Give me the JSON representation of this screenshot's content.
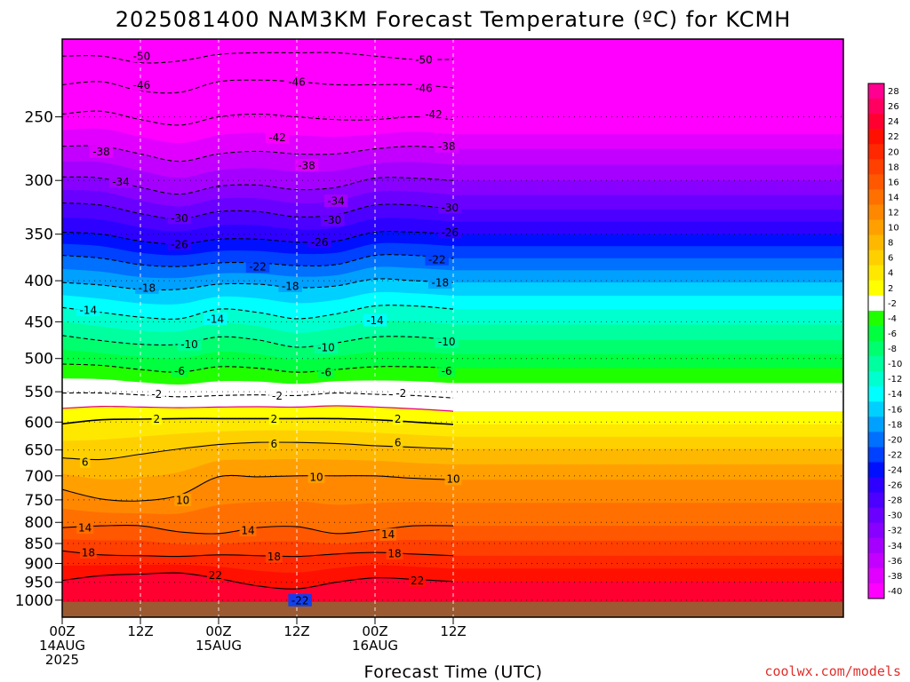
{
  "chart_data": {
    "type": "heatmap",
    "title": "2025081400 NAM3KM Forecast Temperature (ºC) for KCMH",
    "xlabel": "Forecast Time (UTC)",
    "credit": "coolwx.com/models",
    "y_scale": "log",
    "y_units": "hPa",
    "ylim": [
      1050,
      200
    ],
    "yticks": [
      250,
      300,
      350,
      400,
      450,
      500,
      550,
      600,
      650,
      700,
      750,
      800,
      850,
      900,
      950,
      1000
    ],
    "x_hours_range": [
      0,
      48
    ],
    "xticks": [
      {
        "hour": 0,
        "lines": [
          "00Z",
          "14AUG",
          "2025"
        ]
      },
      {
        "hour": 12,
        "lines": [
          "12Z"
        ]
      },
      {
        "hour": 24,
        "lines": [
          "00Z",
          "15AUG"
        ]
      },
      {
        "hour": 36,
        "lines": [
          "12Z"
        ]
      },
      {
        "hour": 48,
        "lines": [
          "00Z",
          "16AUG"
        ]
      },
      {
        "hour": 60,
        "lines": [
          "12Z"
        ]
      }
    ],
    "time_axis_hours": [
      0,
      6,
      12,
      18,
      24,
      30,
      36,
      42,
      48,
      54,
      60
    ],
    "isotherm_profile": [
      {
        "temp": -50,
        "pressure": [
          210,
          210,
          214,
          213,
          209,
          208,
          208,
          208,
          210,
          212,
          212
        ]
      },
      {
        "temp": -46,
        "pressure": [
          228,
          226,
          232,
          233,
          226,
          225,
          226,
          228,
          228,
          228,
          230
        ]
      },
      {
        "temp": -42,
        "pressure": [
          248,
          246,
          252,
          256,
          250,
          248,
          250,
          252,
          252,
          250,
          252
        ]
      },
      {
        "temp": -38,
        "pressure": [
          272,
          272,
          278,
          284,
          278,
          276,
          278,
          278,
          274,
          272,
          274
        ]
      },
      {
        "temp": -34,
        "pressure": [
          297,
          298,
          306,
          312,
          305,
          304,
          308,
          306,
          298,
          298,
          300
        ]
      },
      {
        "temp": -30,
        "pressure": [
          320,
          322,
          330,
          335,
          328,
          328,
          333,
          331,
          322,
          322,
          326
        ]
      },
      {
        "temp": -26,
        "pressure": [
          348,
          350,
          357,
          360,
          355,
          355,
          358,
          357,
          348,
          348,
          350
        ]
      },
      {
        "temp": -22,
        "pressure": [
          372,
          375,
          382,
          384,
          380,
          380,
          383,
          382,
          372,
          372,
          375
        ]
      },
      {
        "temp": -18,
        "pressure": [
          402,
          405,
          410,
          410,
          404,
          404,
          408,
          406,
          398,
          400,
          402
        ]
      },
      {
        "temp": -14,
        "pressure": [
          432,
          438,
          444,
          446,
          434,
          438,
          446,
          440,
          430,
          430,
          434
        ]
      },
      {
        "temp": -10,
        "pressure": [
          468,
          475,
          480,
          480,
          470,
          474,
          484,
          478,
          470,
          470,
          474
        ]
      },
      {
        "temp": -6,
        "pressure": [
          508,
          510,
          516,
          520,
          512,
          514,
          520,
          516,
          512,
          512,
          514
        ]
      },
      {
        "temp": -2,
        "pressure": [
          552,
          552,
          555,
          558,
          556,
          555,
          556,
          552,
          554,
          556,
          560
        ]
      },
      {
        "temp": 2,
        "pressure": [
          603,
          596,
          595,
          594,
          594,
          594,
          594,
          594,
          596,
          600,
          604
        ]
      },
      {
        "temp": 6,
        "pressure": [
          665,
          668,
          658,
          648,
          640,
          636,
          636,
          638,
          642,
          645,
          648
        ]
      },
      {
        "temp": 10,
        "pressure": [
          728,
          748,
          752,
          740,
          702,
          702,
          700,
          700,
          700,
          705,
          708
        ]
      },
      {
        "temp": 14,
        "pressure": [
          812,
          808,
          808,
          822,
          826,
          812,
          810,
          826,
          818,
          808,
          808
        ]
      },
      {
        "temp": 18,
        "pressure": [
          868,
          878,
          880,
          882,
          878,
          880,
          882,
          876,
          872,
          876,
          880
        ]
      },
      {
        "temp": 22,
        "pressure": [
          945,
          932,
          928,
          925,
          940,
          960,
          968,
          950,
          938,
          942,
          948
        ]
      }
    ],
    "contour_labels": [
      {
        "text": "-50",
        "hour": 12.2,
        "pressure": 210
      },
      {
        "text": "-50",
        "hour": 55.5,
        "pressure": 212
      },
      {
        "text": "-46",
        "hour": 12.2,
        "pressure": 228
      },
      {
        "text": "-46",
        "hour": 36.0,
        "pressure": 226
      },
      {
        "text": "-46",
        "hour": 55.5,
        "pressure": 230
      },
      {
        "text": "-42",
        "hour": 33.0,
        "pressure": 265
      },
      {
        "text": "-42",
        "hour": 57.0,
        "pressure": 248
      },
      {
        "text": "-38",
        "hour": 6.0,
        "pressure": 276
      },
      {
        "text": "-38",
        "hour": 37.5,
        "pressure": 287
      },
      {
        "text": "-38",
        "hour": 59.0,
        "pressure": 272
      },
      {
        "text": "-34",
        "hour": 9.0,
        "pressure": 301
      },
      {
        "text": "-34",
        "hour": 42.0,
        "pressure": 318
      },
      {
        "text": "-30",
        "hour": 18.0,
        "pressure": 334
      },
      {
        "text": "-30",
        "hour": 41.5,
        "pressure": 336
      },
      {
        "text": "-30",
        "hour": 59.5,
        "pressure": 324
      },
      {
        "text": "-26",
        "hour": 18.0,
        "pressure": 360
      },
      {
        "text": "-26",
        "hour": 39.5,
        "pressure": 358
      },
      {
        "text": "-26",
        "hour": 59.5,
        "pressure": 348
      },
      {
        "text": "-22",
        "hour": 30.0,
        "pressure": 384
      },
      {
        "text": "-22",
        "hour": 57.5,
        "pressure": 376
      },
      {
        "text": "-18",
        "hour": 13.0,
        "pressure": 408
      },
      {
        "text": "-18",
        "hour": 35.0,
        "pressure": 406
      },
      {
        "text": "-18",
        "hour": 58.0,
        "pressure": 402
      },
      {
        "text": "-14",
        "hour": 4.0,
        "pressure": 435
      },
      {
        "text": "-14",
        "hour": 23.5,
        "pressure": 446
      },
      {
        "text": "-14",
        "hour": 48.0,
        "pressure": 448
      },
      {
        "text": "-10",
        "hour": 19.5,
        "pressure": 480
      },
      {
        "text": "-10",
        "hour": 40.5,
        "pressure": 484
      },
      {
        "text": "-10",
        "hour": 59.0,
        "pressure": 476
      },
      {
        "text": "-6",
        "hour": 18.0,
        "pressure": 518
      },
      {
        "text": "-6",
        "hour": 40.5,
        "pressure": 520
      },
      {
        "text": "-6",
        "hour": 59.0,
        "pressure": 518
      },
      {
        "text": "-2",
        "hour": 14.5,
        "pressure": 553
      },
      {
        "text": "-2",
        "hour": 33.0,
        "pressure": 556
      },
      {
        "text": "-2",
        "hour": 52.0,
        "pressure": 552
      },
      {
        "text": "2",
        "hour": 14.5,
        "pressure": 594
      },
      {
        "text": "2",
        "hour": 32.5,
        "pressure": 594
      },
      {
        "text": "2",
        "hour": 51.5,
        "pressure": 594
      },
      {
        "text": "6",
        "hour": 3.5,
        "pressure": 672
      },
      {
        "text": "6",
        "hour": 32.5,
        "pressure": 638
      },
      {
        "text": "6",
        "hour": 51.5,
        "pressure": 636
      },
      {
        "text": "10",
        "hour": 39.0,
        "pressure": 702
      },
      {
        "text": "10",
        "hour": 60.0,
        "pressure": 706
      },
      {
        "text": "10",
        "hour": 18.5,
        "pressure": 750
      },
      {
        "text": "14",
        "hour": 3.5,
        "pressure": 812
      },
      {
        "text": "14",
        "hour": 28.5,
        "pressure": 818
      },
      {
        "text": "14",
        "hour": 50.0,
        "pressure": 828
      },
      {
        "text": "18",
        "hour": 4.0,
        "pressure": 872
      },
      {
        "text": "18",
        "hour": 32.5,
        "pressure": 882
      },
      {
        "text": "18",
        "hour": 51.0,
        "pressure": 874
      },
      {
        "text": "22",
        "hour": 23.5,
        "pressure": 930
      },
      {
        "text": "22",
        "hour": 54.5,
        "pressure": 945
      },
      {
        "text": "-22",
        "hour": 36.5,
        "pressure": 1000
      }
    ],
    "ground": {
      "color": "#9c5a32"
    },
    "colorbar": {
      "levels": [
        -40,
        -38,
        -36,
        -34,
        -32,
        -30,
        -28,
        -26,
        -24,
        -22,
        -20,
        -18,
        -16,
        -14,
        -12,
        -10,
        -8,
        -6,
        -4,
        -2,
        2,
        4,
        6,
        8,
        10,
        12,
        14,
        16,
        18,
        20,
        22,
        24,
        26,
        28
      ],
      "colors": [
        "#ff00ff",
        "#e100ff",
        "#c300ff",
        "#a500ff",
        "#8800ff",
        "#6a00ff",
        "#4c00ff",
        "#2e00ff",
        "#0010ff",
        "#0040ff",
        "#0070ff",
        "#00a0ff",
        "#00d0ff",
        "#00ffff",
        "#00ffcf",
        "#00ff9f",
        "#00ff6f",
        "#00ff3f",
        "#20ff00",
        "#ffffff",
        "#ffff00",
        "#ffe800",
        "#ffd000",
        "#ffb800",
        "#ffa000",
        "#ff8800",
        "#ff7000",
        "#ff5800",
        "#ff4000",
        "#ff2800",
        "#ff1000",
        "#ff0030",
        "#ff0060",
        "#ff0090"
      ]
    }
  }
}
